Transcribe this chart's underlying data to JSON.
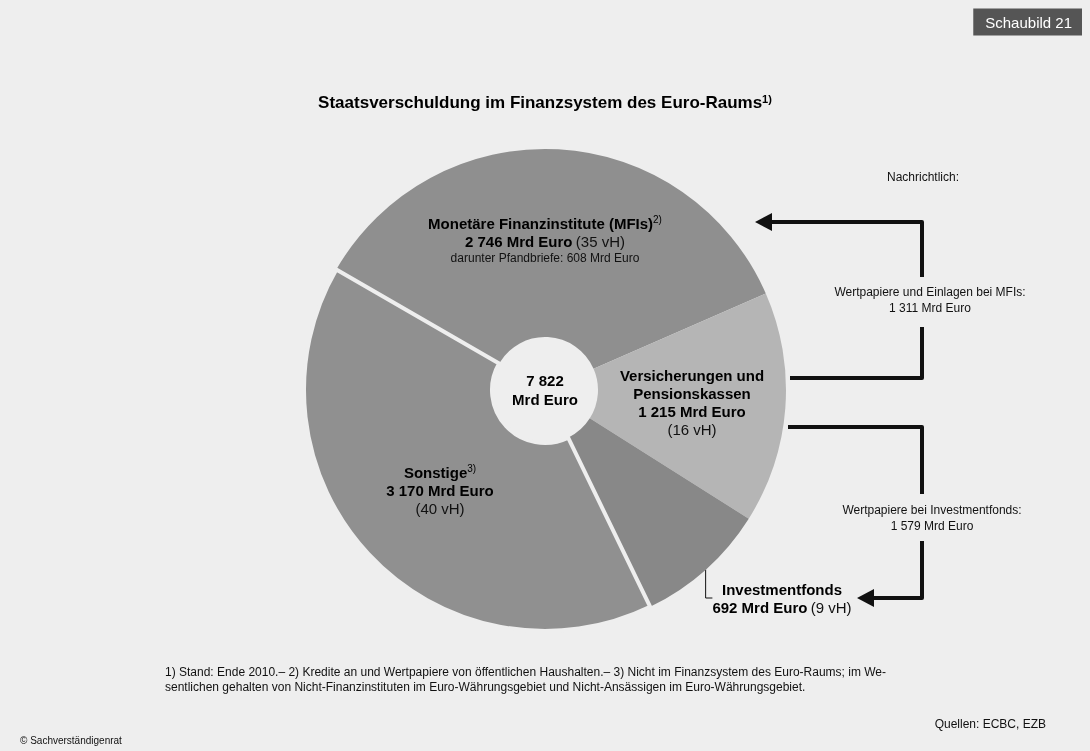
{
  "chart_data": {
    "type": "donut",
    "title": "Staatsverschuldung im Finanzsystem des Euro-Raums$^{1)}$",
    "categories": [
      "Monetäre Finanzinstitute (MFIs)$^{2)}$",
      "Versicherungen und Pensionskassen",
      "Investmentfonds",
      "Sonstige$^{3)}$"
    ],
    "values": [
      2746,
      1215,
      692,
      3170
    ],
    "value_labels": [
      "2 746 Mrd Euro (35 vH)",
      "1 215 Mrd Euro (16 vH)",
      "692 Mrd Euro (9 vH)",
      "3 170 Mrd Euro (40 vH)"
    ],
    "colors": [
      "#8f8f8f",
      "#b5b5b5",
      "#888888",
      "#909090"
    ],
    "legend": false,
    "annotations": [
      "7 822\nMrd Euro",
      "darunter Pfandbriefe: 608 Mrd Euro",
      "Nachrichtlich:",
      "Wertpapiere und Einlagen bei MFIs:\n1 311 Mrd Euro",
      "Wertpapiere bei Investmentfonds:\n1 579 Mrd Euro",
      "1) Stand: Ende 2010.– 2) Kredite an und Wertpapiere von öffentlichen Haushalten.– 3) Nicht im Finanzsystem des Euro-Raums; im We-\nsentlichen gehalten von Nicht-Finanzinstituten im Euro-Währungsgebiet und Nicht-Ansässigen im Euro-Währungsgebiet.",
      "Quellen: ECBC, EZB",
      "© Sachverständigenrat",
      "Schaubild 21"
    ]
  }
}
